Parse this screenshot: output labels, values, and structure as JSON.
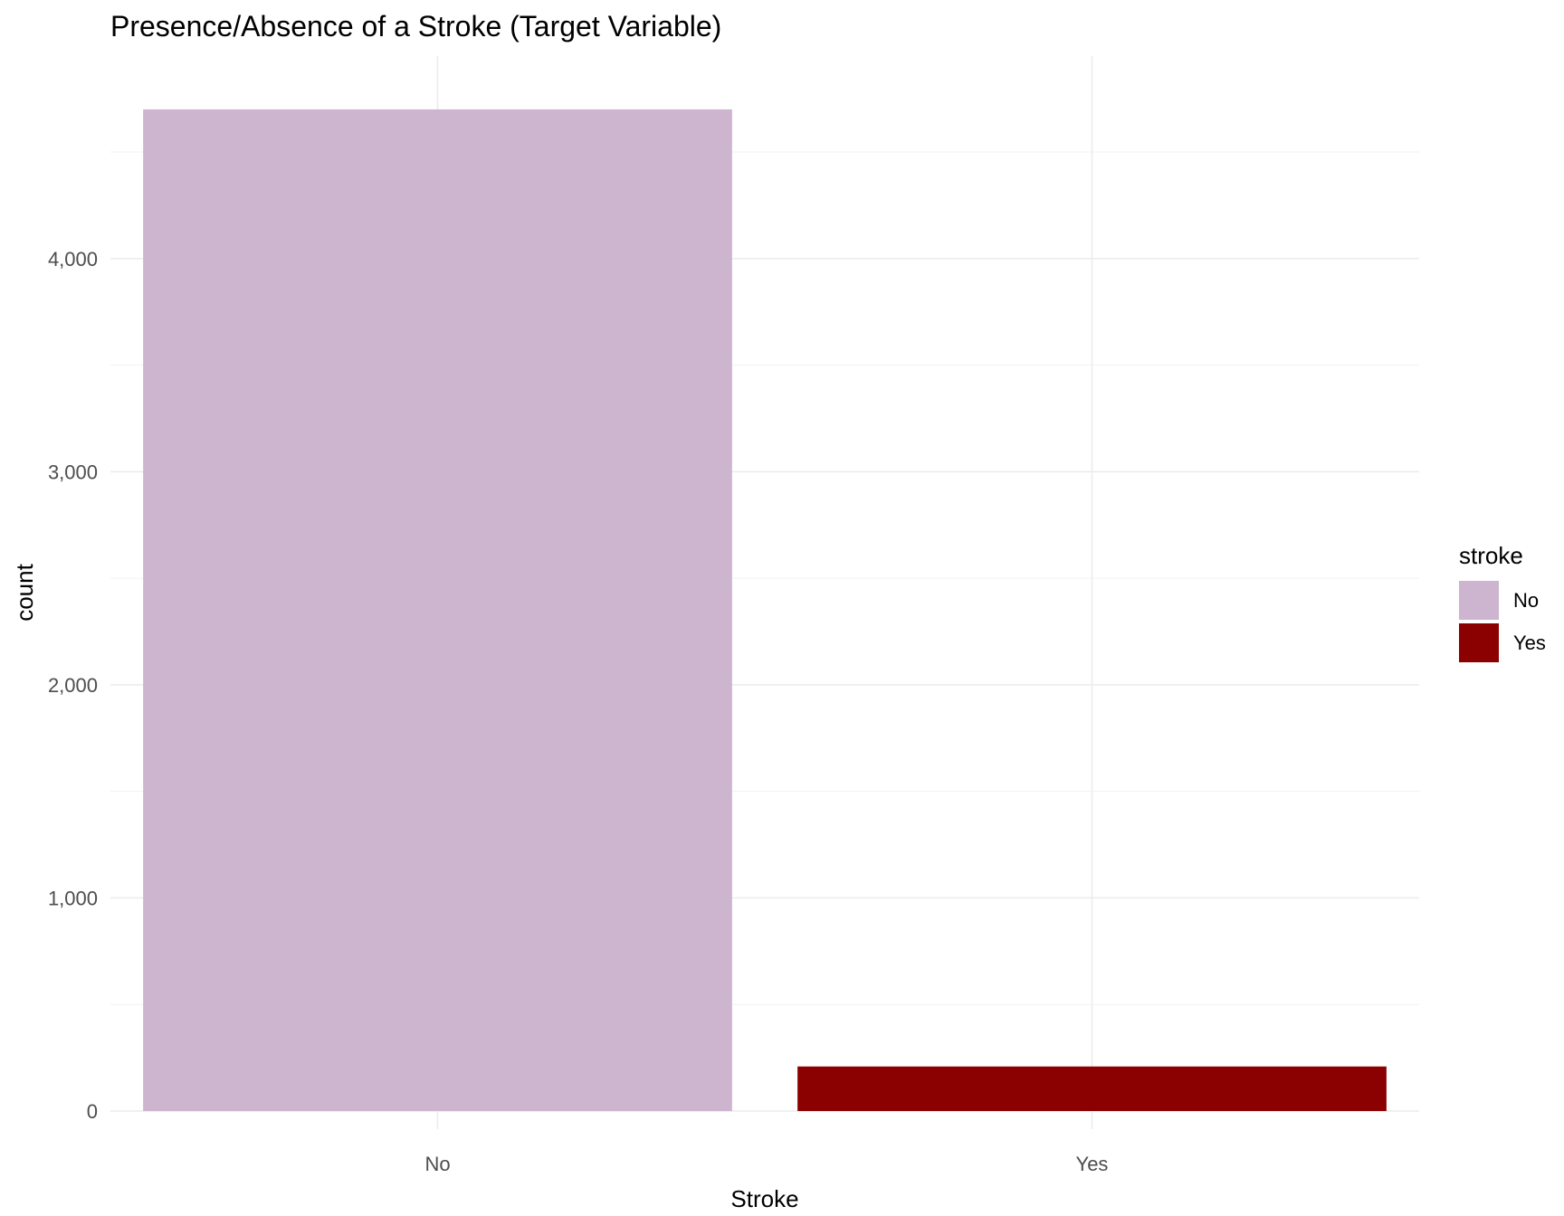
{
  "chart_data": {
    "type": "bar",
    "title": "Presence/Absence of a Stroke (Target Variable)",
    "xlabel": "Stroke",
    "ylabel": "count",
    "categories": [
      "No",
      "Yes"
    ],
    "values": [
      4700,
      209
    ],
    "colors": [
      "#cdb4cf",
      "#8b0000"
    ],
    "ylim": [
      -85,
      4950
    ],
    "y_major_ticks": [
      0,
      1000,
      2000,
      3000,
      4000
    ],
    "y_tick_labels": [
      "0",
      "1,000",
      "2,000",
      "3,000",
      "4,000"
    ],
    "y_minor_ticks": [
      500,
      1500,
      2500,
      3500,
      4500
    ],
    "grid": true,
    "legend": {
      "title": "stroke",
      "position": "right",
      "items": [
        {
          "label": "No",
          "color": "#cdb4cf"
        },
        {
          "label": "Yes",
          "color": "#8b0000"
        }
      ]
    }
  }
}
